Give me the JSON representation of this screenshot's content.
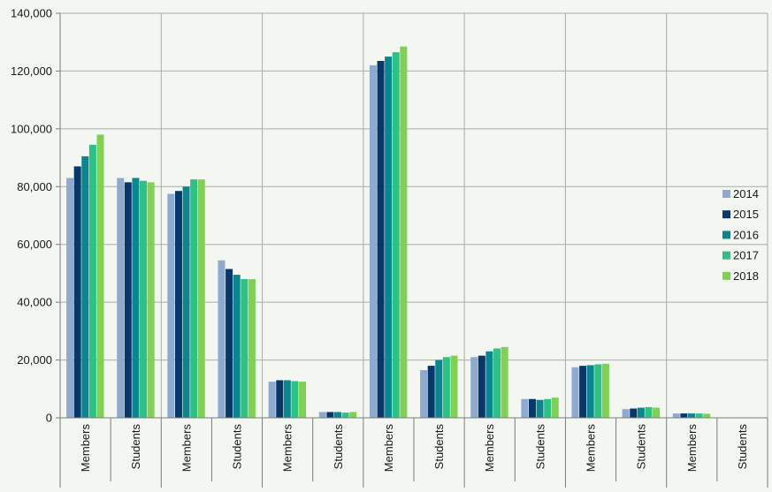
{
  "chart_data": {
    "type": "bar",
    "categories": [
      "Members",
      "Students",
      "Members",
      "Students",
      "Members",
      "Students",
      "Members",
      "Students",
      "Members",
      "Students",
      "Members",
      "Students",
      "Members",
      "Students"
    ],
    "series": [
      {
        "name": "2014",
        "color": "#8eaacf",
        "values": [
          83000,
          83000,
          77500,
          54500,
          12500,
          2000,
          122000,
          16500,
          21000,
          6500,
          17500,
          3000,
          1500,
          0
        ]
      },
      {
        "name": "2015",
        "color": "#08386a",
        "values": [
          87000,
          81500,
          78500,
          51500,
          13000,
          2000,
          123500,
          18000,
          21500,
          6500,
          18000,
          3200,
          1500,
          0
        ]
      },
      {
        "name": "2016",
        "color": "#0a868f",
        "values": [
          90500,
          83000,
          80000,
          49500,
          13000,
          2000,
          125000,
          20000,
          23000,
          6200,
          18200,
          3500,
          1500,
          0
        ]
      },
      {
        "name": "2017",
        "color": "#2cc286",
        "values": [
          94500,
          82000,
          82500,
          48000,
          12700,
          1800,
          126500,
          21000,
          24000,
          6500,
          18500,
          3700,
          1500,
          0
        ]
      },
      {
        "name": "2018",
        "color": "#7fd053",
        "values": [
          98000,
          81500,
          82500,
          48000,
          12500,
          2000,
          128500,
          21500,
          24500,
          7000,
          18700,
          3500,
          1400,
          0
        ]
      }
    ],
    "y_ticks": [
      "0",
      "20,000",
      "40,000",
      "60,000",
      "80,000",
      "100,000",
      "120,000",
      "140,000"
    ],
    "ylim": [
      0,
      140000
    ],
    "grid": true,
    "legend_position": "right"
  }
}
